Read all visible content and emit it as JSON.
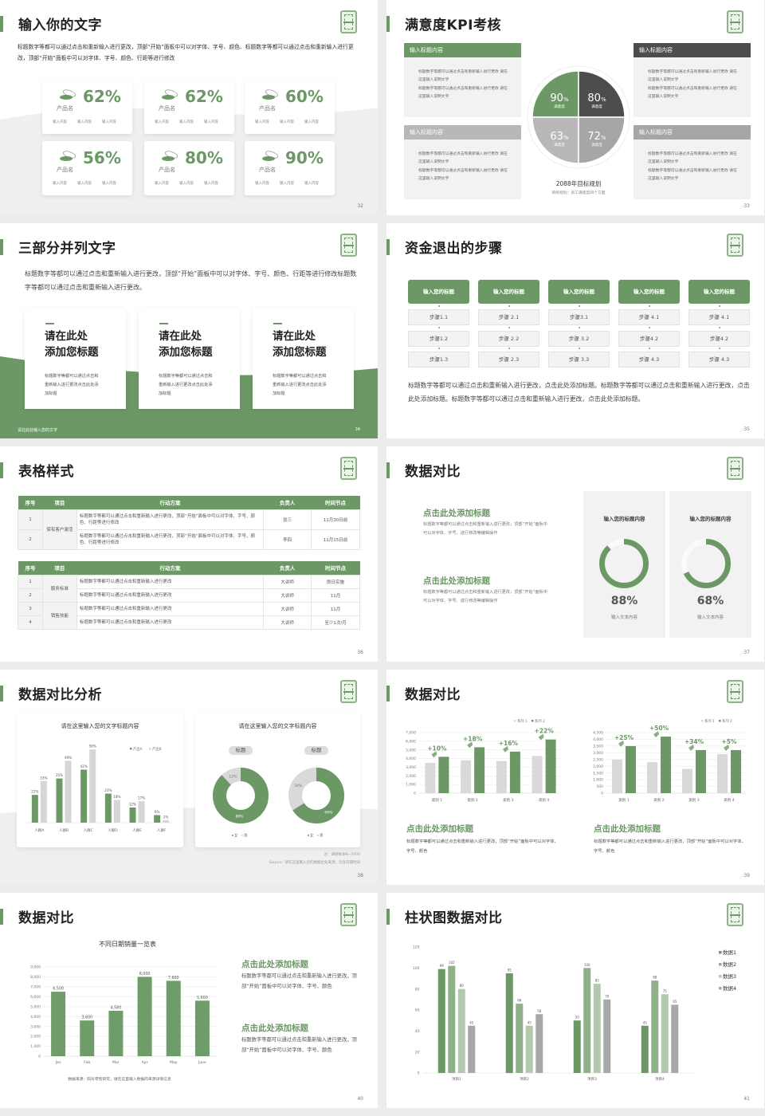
{
  "colors": {
    "green": "#6b9865",
    "dark": "#4d4d4d",
    "gray": "#a6a6a6",
    "light_gray": "#d9d9d9"
  },
  "slides": [
    {
      "page": "32",
      "title": "输入你的文字",
      "body": "标题数字等都可以通过点击和重新输入进行更改，顶部“开始”面板中可以对字体、字号、颜色、标题数字等都可以通过点击和重新输入进行更改，顶部“开始”面板中可以对字体、字号、颜色、行距等进行修改",
      "cards": [
        {
          "value": "62%",
          "name": "产品名",
          "items": [
            "输入内容",
            "输入内容",
            "输入内容"
          ]
        },
        {
          "value": "62%",
          "name": "产品名",
          "items": [
            "输入内容",
            "输入内容",
            "输入内容"
          ]
        },
        {
          "value": "60%",
          "name": "产品名",
          "items": [
            "输入内容",
            "输入内容",
            "输入内容"
          ]
        },
        {
          "value": "56%",
          "name": "产品名",
          "items": [
            "输入内容",
            "输入内容",
            "输入内容"
          ]
        },
        {
          "value": "80%",
          "name": "产品名",
          "items": [
            "输入内容",
            "输入内容",
            "输入内容"
          ]
        },
        {
          "value": "90%",
          "name": "产品名",
          "items": [
            "输入内容",
            "输入内容",
            "输入内容"
          ]
        }
      ]
    },
    {
      "page": "33",
      "title": "满意度KPI考核",
      "boxes": [
        {
          "header": "输入标题内容",
          "bullets": [
            "标题数字等都可以通过点击和重新输入进行更改 请在这里输入说明文字",
            "标题数字等都可以通过点击和重新输入进行更改 请在这里输入说明文字"
          ]
        },
        {
          "header": "输入标题内容",
          "bullets": [
            "标题数字等都可以通过点击和重新输入进行更改 请在这里输入说明文字",
            "标题数字等都可以通过点击和重新输入进行更改 请在这里输入说明文字"
          ]
        },
        {
          "header": "输入标题内容",
          "bullets": [
            "标题数字等都可以通过点击和重新输入进行更改 请在这里输入说明文字",
            "标题数字等都可以通过点击和重新输入进行更改 请在这里输入说明文字"
          ]
        },
        {
          "header": "输入标题内容",
          "bullets": [
            "标题数字等都可以通过点击和重新输入进行更改 请在这里输入说明文字",
            "标题数字等都可以通过点击和重新输入进行更改 请在这里输入说明文字"
          ]
        }
      ],
      "quadrants": [
        {
          "value": "90",
          "unit": "%",
          "label": "满意度"
        },
        {
          "value": "80",
          "unit": "%",
          "label": "满意度"
        },
        {
          "value": "63",
          "unit": "%",
          "label": "满意度"
        },
        {
          "value": "72",
          "unit": "%",
          "label": "满意度"
        }
      ],
      "caption": "2088年目标规划",
      "subcaption": "目标规划：员工满意度四个方面"
    },
    {
      "page": "34",
      "title": "三部分并列文字",
      "body": "标题数字等都可以通过点击和重新输入进行更改，顶部“开始”面板中可以对字体、字号、颜色、行距等进行修改标题数字等都可以通过点击和重新输入进行更改。",
      "cards": [
        {
          "heading": "请在此处\n添加您标题",
          "text": "标题数字等都可以通过点击和重新输入进行更改点击此处添加标题"
        },
        {
          "heading": "请在此处\n添加您标题",
          "text": "标题数字等都可以通过点击和重新输入进行更改点击此处添加标题"
        },
        {
          "heading": "请在此处\n添加您标题",
          "text": "标题数字等都可以通过点击和重新输入进行更改点击此处添加标题"
        }
      ],
      "footer": "请在此处输入您的文字"
    },
    {
      "page": "35",
      "title": "资金退出的步骤",
      "columns": [
        {
          "header": "输入您的标题",
          "steps": [
            "步骤1.1",
            "步骤1.2",
            "步骤1.3"
          ]
        },
        {
          "header": "输入您的标题",
          "steps": [
            "步骤 2.1",
            "步骤 2.2",
            "步骤 2.3"
          ]
        },
        {
          "header": "输入您的标题",
          "steps": [
            "步骤3.1",
            "步骤 3.2",
            "步骤 3.3"
          ]
        },
        {
          "header": "输入您的标题",
          "steps": [
            "步骤 4.1",
            "步骤4.2",
            "步骤 4.3"
          ]
        },
        {
          "header": "输入您的标题",
          "steps": [
            "步骤 4.1",
            "步骤4.2",
            "步骤 4.3"
          ]
        }
      ],
      "body": "标题数字等都可以通过点击和重新输入进行更改，点击此处添加标题。标题数字等都可以通过点击和重新输入进行更改，点击此处添加标题。标题数字等都可以通过点击和重新输入进行更改，点击此处添加标题。"
    },
    {
      "page": "36",
      "title": "表格样式",
      "tables": [
        {
          "headers": [
            "序号",
            "项目",
            "行动方案",
            "负责人",
            "时间节点"
          ],
          "groups": [
            {
              "project": "保有客户激活",
              "rows": [
                {
                  "no": "1",
                  "plan": "标题数字等都可以通过点击和重新输入进行更改，顶部“开始”面板中可以对字体、字号、颜色、行距等进行修改",
                  "owner": "张三",
                  "time": "11月30日前"
                },
                {
                  "no": "2",
                  "plan": "标题数字等都可以通过点击和重新输入进行更改，顶部“开始”面板中可以对字体、字号、颜色、行距等进行修改",
                  "owner": "李四",
                  "time": "11月15日前"
                }
              ]
            }
          ]
        },
        {
          "headers": [
            "序号",
            "项目",
            "行动方案",
            "负责人",
            "时间节点"
          ],
          "groups": [
            {
              "project": "服务标准",
              "rows": [
                {
                  "no": "1",
                  "plan": "标题数字等都可以通过点击和重新输入进行更改",
                  "owner": "大讲师",
                  "time": "即日实施"
                },
                {
                  "no": "2",
                  "plan": "标题数字等都可以通过点击和重新输入进行更改",
                  "owner": "大讲师",
                  "time": "11月"
                }
              ]
            },
            {
              "project": "销售技能",
              "rows": [
                {
                  "no": "3",
                  "plan": "标题数字等都可以通过点击和重新输入进行更改",
                  "owner": "大讲师",
                  "time": "11月"
                },
                {
                  "no": "4",
                  "plan": "标题数字等都可以通过点击和重新输入进行更改",
                  "owner": "大讲师",
                  "time": "至少1次/月"
                }
              ]
            }
          ]
        }
      ]
    },
    {
      "page": "37",
      "title": "数据对比",
      "items": [
        {
          "heading": "点击此处添加标题",
          "text": "标题数字等都可以通过点击和重新输入进行更改，顶部“开始”面板中可以对字体、字号、进行修改等编辑操作"
        },
        {
          "heading": "点击此处添加标题",
          "text": "标题数字等都可以通过点击和重新输入进行更改，顶部“开始”面板中可以对字体、字号、进行修改等编辑操作"
        }
      ],
      "panels": [
        {
          "title": "输入您的标题内容",
          "percent": 88,
          "value": "88%",
          "caption": "输入文本内容"
        },
        {
          "title": "输入您的标题内容",
          "percent": 68,
          "value": "68%",
          "caption": "输入文本内容"
        }
      ]
    },
    {
      "page": "38",
      "title": "数据对比分析",
      "left_title": "请在这里输入您的文字标题内容",
      "right_title": "请在这里输入您的文字标题内容",
      "note": "注：调研样本N=5000",
      "source": "Source：请在这里输入您的数据出处来源，包含日期时间"
    },
    {
      "page": "39",
      "title": "数据对比",
      "items": [
        {
          "heading": "点击此处添加标题",
          "text": "标题数字等都可以通过点击和重新输入进行更改，顶部“开始”面板中可以对字体、字号、颜色"
        },
        {
          "heading": "点击此处添加标题",
          "text": "标题数字等都可以通过点击和重新输入进行更改，顶部“开始”面板中可以对字体、字号、颜色"
        }
      ]
    },
    {
      "page": "40",
      "title": "数据对比",
      "source": "数据来源：阳光零售研究，请在这里输入数据的来源详情信息",
      "items": [
        {
          "heading": "点击此处添加标题",
          "text": "标题数字等都可以通过点击和重新输入进行更改，顶部“开始”面板中可以对字体、字号、颜色"
        },
        {
          "heading": "点击此处添加标题",
          "text": "标题数字等都可以通过点击和重新输入进行更改，顶部“开始”面板中可以对字体、字号、颜色"
        }
      ]
    },
    {
      "page": "41",
      "title": "柱状图数据对比"
    }
  ],
  "chart_data": [
    {
      "type": "bar",
      "title": "请在这里输入您的文字标题内容",
      "categories": [
        "人群A",
        "人群B",
        "人群C",
        "人群D",
        "人群E",
        "人群F"
      ],
      "series": [
        {
          "name": "产品A",
          "values": [
            22,
            35,
            42,
            23,
            12,
            6
          ],
          "labels": [
            "22%",
            "35%",
            "42%",
            "23%",
            "12%",
            "6%"
          ]
        },
        {
          "name": "产品B",
          "values": [
            33,
            49,
            58,
            18,
            17,
            2
          ],
          "labels": [
            "33%",
            "49%",
            "58%",
            "18%",
            "17%",
            "2%"
          ]
        }
      ],
      "ylim": [
        0,
        60
      ],
      "legend": "top-right",
      "grid": false
    },
    {
      "type": "pie",
      "title": "标题",
      "labels": [
        "女",
        "男"
      ],
      "values": [
        88,
        12
      ],
      "value_labels": [
        "88%",
        "12%"
      ]
    },
    {
      "type": "pie",
      "title": "标题",
      "labels": [
        "女",
        "男"
      ],
      "values": [
        66,
        34
      ],
      "value_labels": [
        "66%",
        "34%"
      ]
    },
    {
      "type": "bar",
      "categories": [
        "类别 1",
        "类别 2",
        "类别 3",
        "类别 4"
      ],
      "series": [
        {
          "name": "系列 1",
          "values": [
            3500,
            3800,
            3700,
            4300
          ]
        },
        {
          "name": "系列 2",
          "values": [
            4200,
            5300,
            4800,
            6200
          ]
        }
      ],
      "annotations": [
        "+10%",
        "+18%",
        "+16%",
        "+22%"
      ],
      "ylim": [
        0,
        7000
      ],
      "yticks": [
        "0",
        "1,000",
        "2,000",
        "3,000",
        "4,000",
        "5,000",
        "6,000",
        "7,000"
      ],
      "legend": "top-right",
      "grid": true
    },
    {
      "type": "bar",
      "categories": [
        "类别 1",
        "类别 2",
        "类别 3",
        "类别 4"
      ],
      "series": [
        {
          "name": "系列 1",
          "values": [
            2500,
            2300,
            1800,
            2900
          ]
        },
        {
          "name": "系列 2",
          "values": [
            3500,
            4200,
            3200,
            3200
          ]
        }
      ],
      "annotations": [
        "+25%",
        "+50%",
        "+34%",
        "+5%"
      ],
      "ylim": [
        0,
        4500
      ],
      "yticks": [
        "0",
        "500",
        "1,000",
        "1,500",
        "2,000",
        "2,500",
        "3,000",
        "3,500",
        "4,000",
        "4,500"
      ],
      "legend": "top-right",
      "grid": true
    },
    {
      "type": "bar",
      "title": "不同日期销量一览表",
      "categories": [
        "Jan",
        "Feb",
        "Mar",
        "Apr",
        "May",
        "June"
      ],
      "series": [
        {
          "values": [
            6500,
            3600,
            4580,
            8000,
            7600,
            5600
          ],
          "labels": [
            "6,500",
            "3,600",
            "4,580",
            "8,000",
            "7,600",
            "5,600"
          ]
        }
      ],
      "ylim": [
        0,
        9000
      ],
      "yticks": [
        "0",
        "1,000",
        "2,000",
        "3,000",
        "4,000",
        "5,000",
        "6,000",
        "7,000",
        "8,000",
        "9,000"
      ],
      "grid": true
    },
    {
      "type": "bar",
      "categories": [
        "项目1",
        "项目2",
        "项目3",
        "项目4"
      ],
      "series": [
        {
          "name": "数据1",
          "values": [
            99,
            95,
            50,
            45
          ],
          "color": "#6b9865"
        },
        {
          "name": "数据2",
          "values": [
            102,
            66,
            100,
            88
          ],
          "color": "#8fb088"
        },
        {
          "name": "数据3",
          "values": [
            80,
            45,
            85,
            75
          ],
          "color": "#b2c9ad"
        },
        {
          "name": "数据4",
          "values": [
            45,
            56,
            70,
            65
          ],
          "color": "#a8a8a8"
        }
      ],
      "ylim": [
        0,
        120
      ],
      "yticks": [
        "0",
        "20",
        "40",
        "60",
        "80",
        "100",
        "120"
      ],
      "legend": "right",
      "grid": false
    }
  ]
}
